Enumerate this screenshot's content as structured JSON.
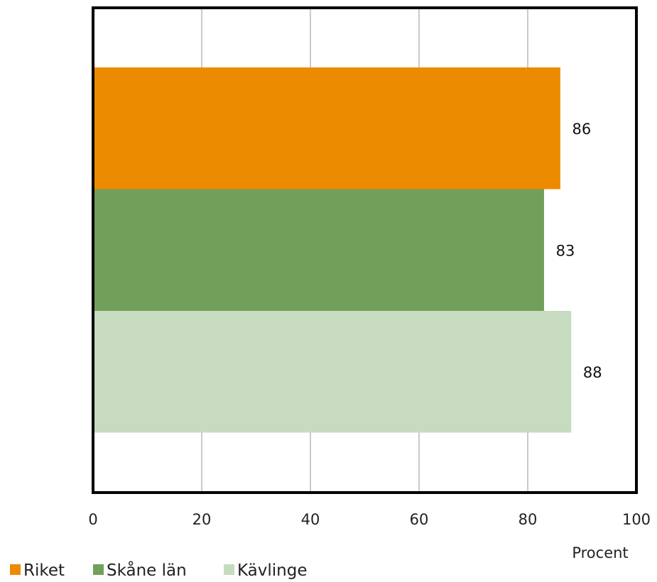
{
  "chart_data": {
    "type": "bar",
    "orientation": "horizontal",
    "categories": [
      ""
    ],
    "series": [
      {
        "name": "Riket",
        "values": [
          86
        ],
        "color": "#EC8B00"
      },
      {
        "name": "Skåne län",
        "values": [
          83
        ],
        "color": "#71A05A"
      },
      {
        "name": "Kävlinge",
        "values": [
          88
        ],
        "color": "#C6DBBF"
      }
    ],
    "xlabel": "Procent",
    "ylabel": "",
    "xlim": [
      0,
      100
    ],
    "xticks": [
      "0",
      "20",
      "40",
      "60",
      "80",
      "100"
    ],
    "grid": true,
    "legend": "bottom-left"
  }
}
